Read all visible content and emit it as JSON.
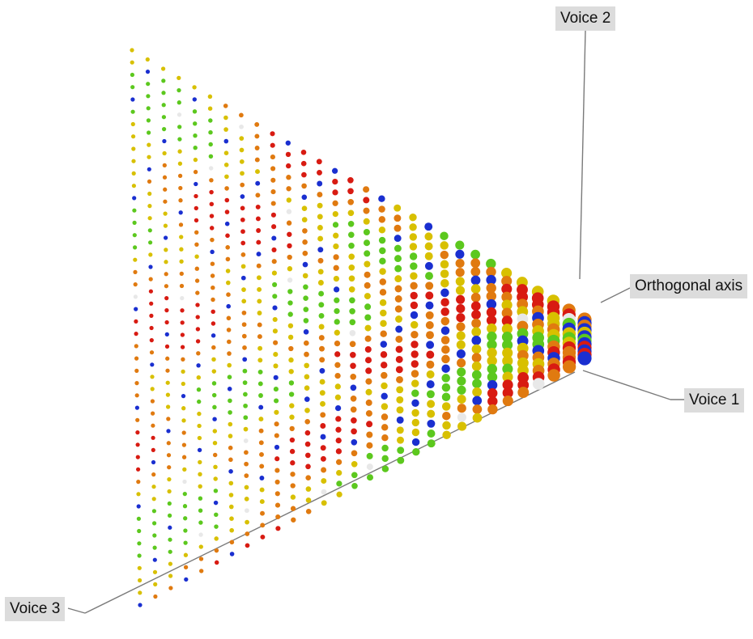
{
  "labels": {
    "voice2": "Voice 2",
    "orthogonal": "Orthogonal axis",
    "voice1": "Voice 1",
    "voice3": "Voice 3"
  },
  "colors": {
    "background": "#ffffff",
    "axis_line": "#7a7a7a",
    "label_box": "#dcdcdc",
    "dissonant": "#d81b12",
    "warm": "#e07a10",
    "mid": "#d8c000",
    "consonant": "#5cc81e",
    "special": "#1a2fd0",
    "unison": "#e8e8e8"
  }
}
